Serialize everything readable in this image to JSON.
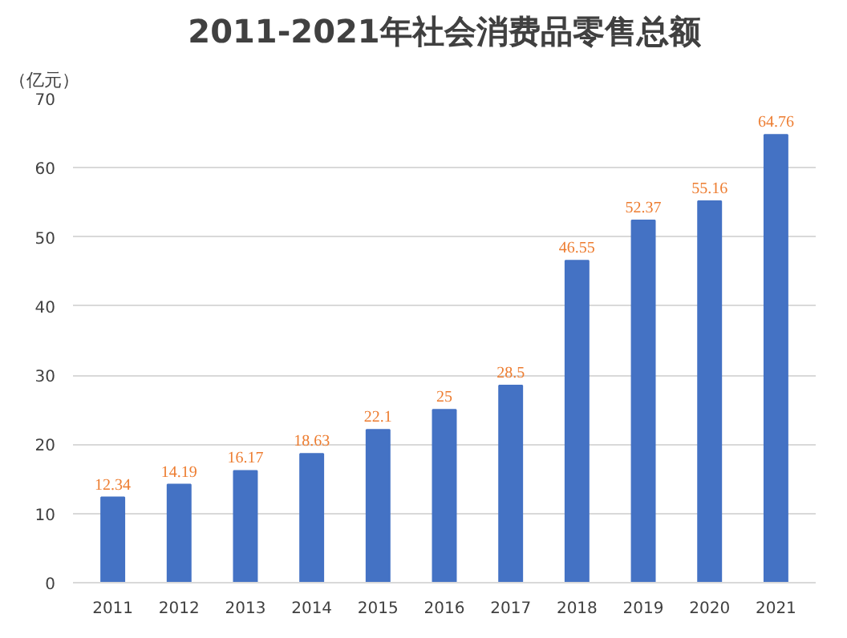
{
  "chart_data": {
    "type": "bar",
    "title": "2011-2021年社会消费品零售总额",
    "ylabel": "（亿元）",
    "categories": [
      "2011",
      "2012",
      "2013",
      "2014",
      "2015",
      "2016",
      "2017",
      "2018",
      "2019",
      "2020",
      "2021"
    ],
    "values": [
      12.34,
      14.19,
      16.17,
      18.63,
      22.1,
      25,
      28.5,
      46.55,
      52.37,
      55.16,
      64.76
    ],
    "color": "#4472c4",
    "ylim": [
      0,
      70
    ],
    "yticks": [
      0,
      10,
      20,
      30,
      40,
      50,
      60,
      70
    ],
    "grid": "y",
    "data_labels": true
  }
}
